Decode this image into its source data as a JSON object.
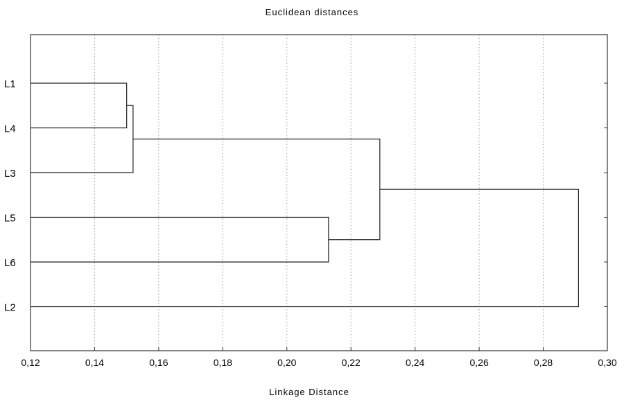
{
  "chart_data": {
    "type": "dendrogram",
    "title": "Euclidean distances",
    "xlabel": "Linkage Distance",
    "xlim": [
      0.12,
      0.3
    ],
    "x_ticks": [
      0.12,
      0.14,
      0.16,
      0.18,
      0.2,
      0.22,
      0.24,
      0.26,
      0.28,
      0.3
    ],
    "x_tick_labels": [
      "0,12",
      "0,14",
      "0,16",
      "0,18",
      "0,20",
      "0,22",
      "0,24",
      "0,26",
      "0,28",
      "0,30"
    ],
    "grid": "vertical dotted",
    "leaves": [
      "L1",
      "L4",
      "L3",
      "L5",
      "L6",
      "L2"
    ],
    "merges": [
      {
        "a": "L1",
        "b": "L4",
        "distance": 0.15
      },
      {
        "a": "L1+L4",
        "b": "L3",
        "distance": 0.152
      },
      {
        "a": "L5",
        "b": "L6",
        "distance": 0.213
      },
      {
        "a": "L1+L4+L3",
        "b": "L5+L6",
        "distance": 0.229
      },
      {
        "a": "L1+L4+L3+L5+L6",
        "b": "L2",
        "distance": 0.291
      }
    ]
  }
}
